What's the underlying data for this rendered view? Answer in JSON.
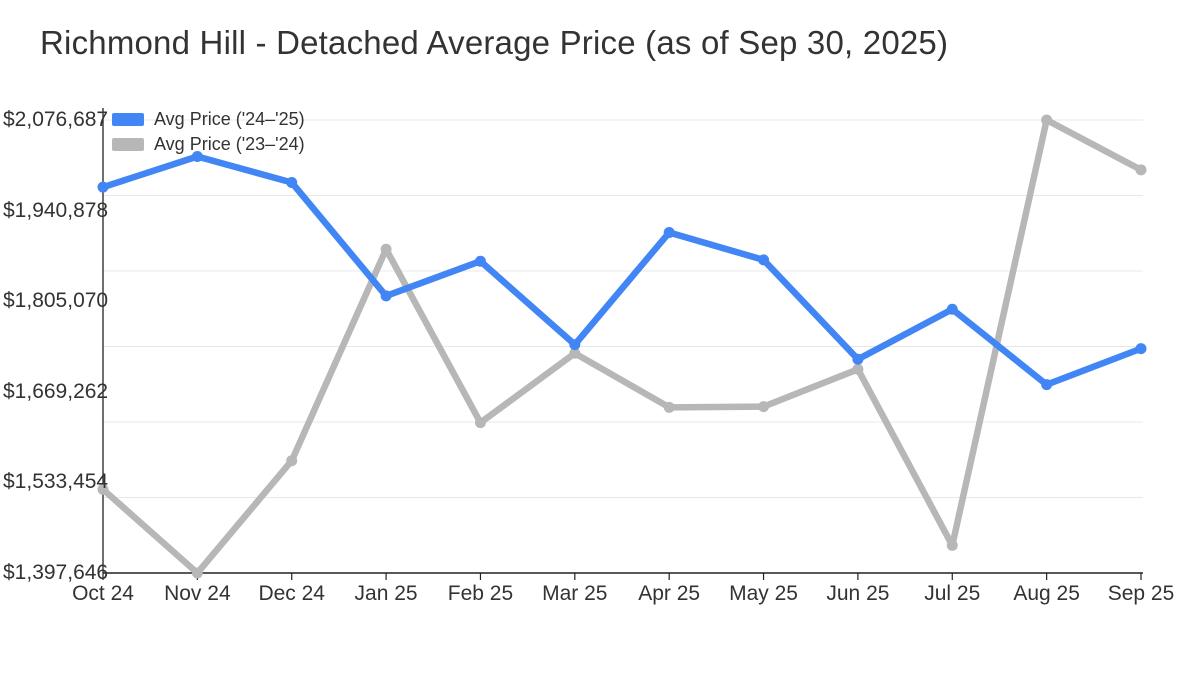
{
  "title": "Richmond Hill - Detached Average Price (as of Sep 30, 2025)",
  "legend": [
    {
      "label": "Avg Price ('24–'25)",
      "color": "#4285f4"
    },
    {
      "label": "Avg Price ('23–'24)",
      "color": "#b7b7b7"
    }
  ],
  "y_axis": {
    "tick_labels": [
      "$2,076,687",
      "$1,940,878",
      "$1,805,070",
      "$1,669,262",
      "$1,533,454",
      "$1,397,646"
    ],
    "tick_values": [
      2076687,
      1940878,
      1805070,
      1669262,
      1533454,
      1397646
    ]
  },
  "chart_data": {
    "type": "line",
    "title": "Richmond Hill - Detached Average Price (as of Sep 30, 2025)",
    "categories": [
      "Oct 24",
      "Nov 24",
      "Dec 24",
      "Jan 25",
      "Feb 25",
      "Mar 25",
      "Apr 25",
      "May 25",
      "Jun 25",
      "Jul 25",
      "Aug 25",
      "Sep 25"
    ],
    "series": [
      {
        "name": "Avg Price ('24–'25)",
        "color": "#4285f4",
        "values": [
          1976000,
          2022000,
          1983000,
          1813000,
          1865000,
          1740000,
          1908000,
          1867000,
          1718000,
          1793000,
          1680000,
          1734000
        ]
      },
      {
        "name": "Avg Price ('23–'24)",
        "color": "#b7b7b7",
        "values": [
          1523000,
          1397646,
          1566000,
          1883000,
          1623000,
          1727000,
          1646000,
          1647000,
          1703000,
          1439000,
          2076687,
          2002000
        ]
      }
    ],
    "xlabel": "",
    "ylabel": "",
    "ylim": [
      1397646,
      2076687
    ],
    "grid": true,
    "gridline_count": 7,
    "legend_position": "top-left"
  },
  "styles": {
    "background": "#ffffff",
    "text_color": "#333333",
    "axis_color": "#222222",
    "grid_color": "#e8e8e8"
  }
}
